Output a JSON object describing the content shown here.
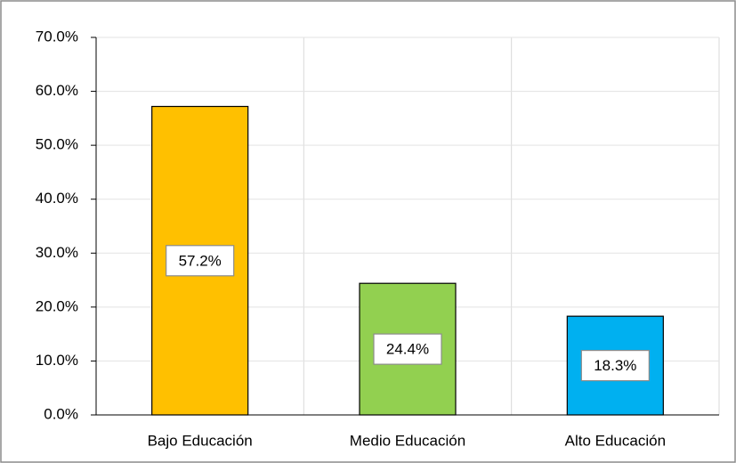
{
  "chart_data": {
    "type": "bar",
    "categories": [
      "Bajo Educación",
      "Medio Educación",
      "Alto Educación"
    ],
    "values": [
      57.2,
      24.4,
      18.3
    ],
    "value_labels": [
      "57.2%",
      "24.4%",
      "18.3%"
    ],
    "colors": [
      "#FFC000",
      "#92D050",
      "#00B0F0"
    ],
    "ylim": [
      0,
      70
    ],
    "yticks": [
      {
        "value": 0,
        "label": "0.0%"
      },
      {
        "value": 10,
        "label": "10.0%"
      },
      {
        "value": 20,
        "label": "20.0%"
      },
      {
        "value": 30,
        "label": "30.0%"
      },
      {
        "value": 40,
        "label": "40.0%"
      },
      {
        "value": 50,
        "label": "50.0%"
      },
      {
        "value": 60,
        "label": "60.0%"
      },
      {
        "value": 70,
        "label": "70.0%"
      }
    ],
    "grid": true
  }
}
